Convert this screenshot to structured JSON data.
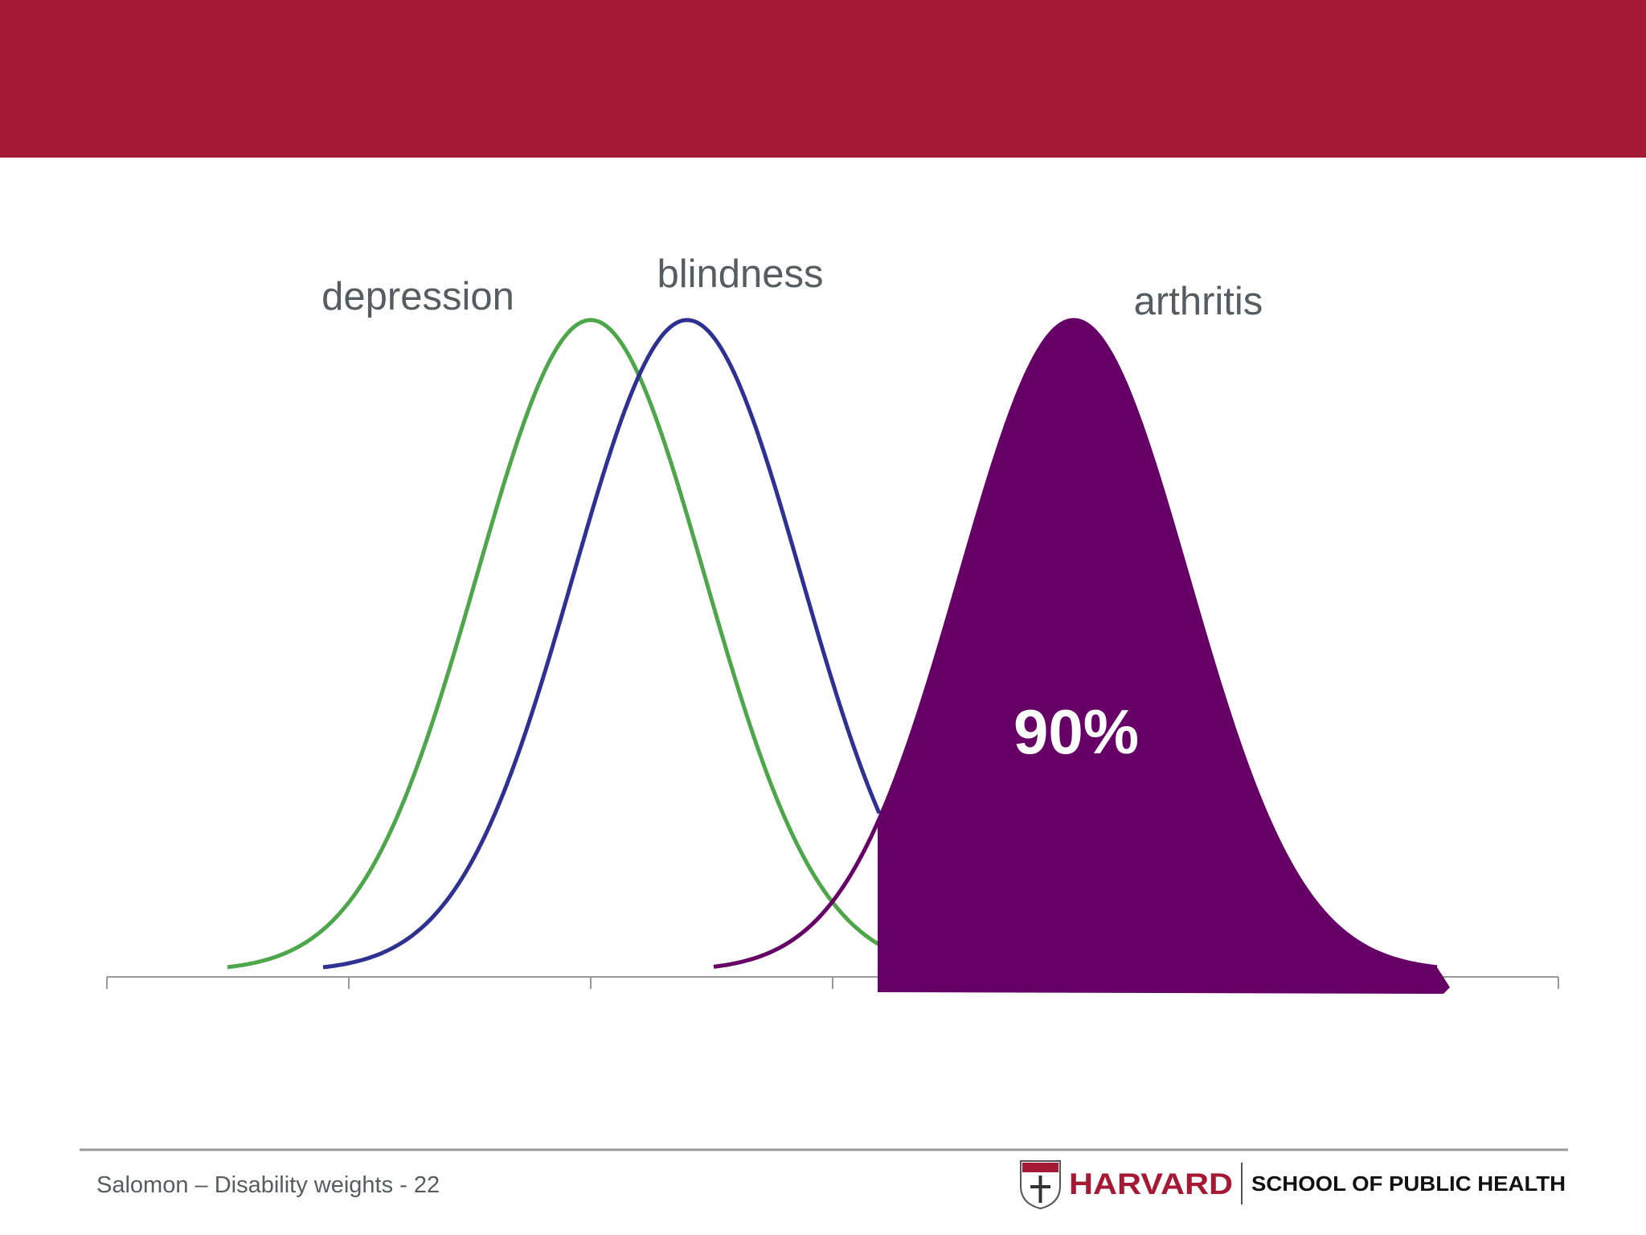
{
  "labels": {
    "depression": "depression",
    "blindness": "blindness",
    "arthritis": "arthritis"
  },
  "annotation": "90%",
  "footer": {
    "text": "Salomon – Disability weights - 22",
    "logo_name": "HARVARD",
    "logo_school": "SCHOOL OF PUBLIC HEALTH"
  }
}
